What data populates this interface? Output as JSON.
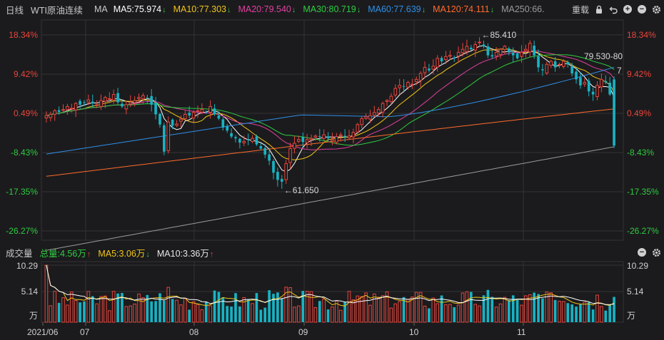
{
  "header": {
    "period": "日线",
    "symbol": "WTI原油连续",
    "ma_label": "MA",
    "indicators": [
      {
        "label": "MA5:",
        "value": "75.974",
        "color": "#ffffff",
        "dir": "down"
      },
      {
        "label": "MA10:",
        "value": "77.303",
        "color": "#f0c419",
        "dir": "down"
      },
      {
        "label": "MA20:",
        "value": "79.540",
        "color": "#e040a0",
        "dir": "down"
      },
      {
        "label": "MA30:",
        "value": "80.719",
        "color": "#2ecc40",
        "dir": "down"
      },
      {
        "label": "MA60:",
        "value": "77.639",
        "color": "#2f8fe8",
        "dir": "down"
      },
      {
        "label": "MA120:",
        "value": "74.111",
        "color": "#ff6a2b",
        "dir": "down"
      },
      {
        "label": "MA250:",
        "value": "66.",
        "color": "#9a9a9a",
        "dir": ""
      }
    ],
    "reload_label": "重载"
  },
  "volume_header": {
    "title": "成交量",
    "total_label": "总量:",
    "total_value": "4.56万",
    "ma5_label": "MA5:",
    "ma5_value": "3.06万",
    "ma10_label": "MA10:",
    "ma10_value": "3.36万"
  },
  "colors": {
    "up": "#e8453c",
    "down": "#17b3c4",
    "background": "#1b1b1d",
    "grid": "#333338",
    "pos_label": "#e8453c",
    "neg_label": "#2ecc40"
  },
  "chart_data": [
    {
      "type": "candlestick",
      "title": "WTI原油连续 日线",
      "x_labels": [
        "2021/06",
        "07",
        "08",
        "09",
        "10",
        "11"
      ],
      "y_axis_labels": [
        "18.34%",
        "9.42%",
        "0.49%",
        "-8.43%",
        "-17.35%",
        "-26.27%"
      ],
      "annotations": [
        {
          "text": "←85.410",
          "kind": "high"
        },
        {
          "text": "←61.650",
          "kind": "low"
        },
        {
          "text": "79.530-80",
          "kind": "level"
        },
        {
          "text": "7",
          "kind": "level"
        }
      ],
      "series": [
        {
          "name": "Close",
          "values": [
            73.0,
            73.2,
            73.8,
            73.6,
            74.0,
            74.5,
            74.2,
            75.0,
            74.8,
            75.2,
            75.6,
            75.0,
            74.8,
            75.5,
            76.0,
            75.8,
            76.5,
            75.2,
            74.5,
            74.8,
            75.2,
            75.5,
            76.0,
            76.3,
            75.9,
            74.8,
            73.2,
            71.5,
            67.0,
            71.9,
            71.3,
            71.6,
            72.4,
            73.2,
            73.0,
            73.5,
            73.8,
            74.0,
            73.5,
            74.5,
            73.2,
            72.5,
            71.0,
            70.5,
            69.5,
            69.2,
            68.5,
            68.7,
            68.9,
            69.2,
            68.2,
            67.5,
            66.5,
            65.5,
            63.5,
            62.3,
            62.0,
            65.0,
            67.5,
            68.4,
            69.0,
            68.6,
            69.0,
            69.2,
            69.6,
            69.5,
            69.8,
            69.2,
            69.0,
            69.5,
            69.8,
            69.4,
            69.6,
            70.2,
            71.5,
            72.5,
            72.8,
            73.0,
            73.5,
            74.0,
            75.0,
            75.5,
            76.2,
            77.5,
            78.0,
            77.8,
            78.5,
            78.2,
            79.0,
            80.0,
            81.0,
            80.5,
            81.2,
            82.5,
            82.0,
            82.8,
            83.0,
            82.5,
            83.5,
            84.0,
            84.5,
            84.0,
            84.8,
            85.2,
            84.5,
            83.0,
            82.8,
            83.5,
            84.0,
            84.5,
            83.5,
            83.0,
            82.5,
            83.5,
            84.0,
            85.0,
            83.0,
            81.0,
            80.5,
            81.5,
            82.0,
            81.0,
            81.5,
            82.0,
            81.5,
            80.0,
            79.0,
            78.0,
            78.5,
            77.0,
            76.5,
            78.0,
            79.0,
            78.5,
            76.5,
            68.0
          ]
        },
        {
          "name": "MA5",
          "values": [
            75.974
          ]
        },
        {
          "name": "MA10",
          "values": [
            77.303
          ]
        },
        {
          "name": "MA20",
          "values": [
            79.54
          ]
        },
        {
          "name": "MA30",
          "values": [
            80.719
          ]
        },
        {
          "name": "MA60",
          "values": [
            77.639
          ]
        },
        {
          "name": "MA120",
          "values": [
            74.111
          ]
        }
      ]
    },
    {
      "type": "bar",
      "title": "成交量",
      "y_axis_labels": [
        "10.29",
        "5.14",
        "万"
      ],
      "unit": "万",
      "total": 4.56,
      "ma5": 3.06,
      "ma10": 3.36
    }
  ]
}
